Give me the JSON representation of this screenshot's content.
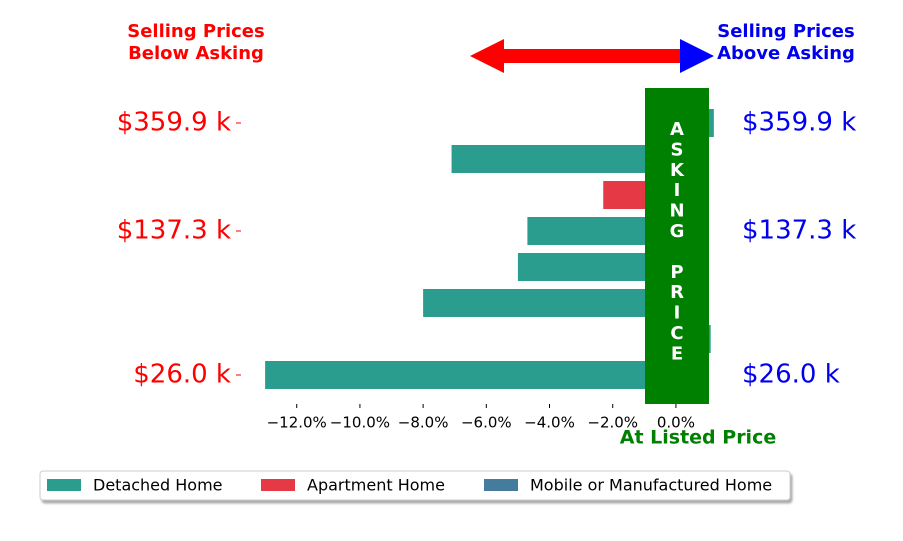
{
  "chart_data": {
    "type": "bar",
    "orientation": "horizontal",
    "categories": [
      "$359.9 k",
      null,
      null,
      "$137.3 k",
      null,
      null,
      null,
      "$26.0 k"
    ],
    "series": [
      {
        "name": "Detached Home",
        "color": "#2a9d8f",
        "values": [
          1.2,
          -7.1,
          null,
          -4.7,
          -5.0,
          -8.0,
          1.1,
          -13.0
        ]
      },
      {
        "name": "Apartment Home",
        "color": "#e63946",
        "values": [
          null,
          null,
          -2.3,
          null,
          null,
          null,
          null,
          null
        ]
      },
      {
        "name": "Mobile or Manufactured Home",
        "color": "#457b9d",
        "values": [
          null,
          null,
          null,
          null,
          null,
          null,
          null,
          null
        ]
      }
    ],
    "xlim": [
      -13.7,
      1.3
    ],
    "xticks": [
      {
        "value": -12,
        "label": "−12.0%"
      },
      {
        "value": -10,
        "label": "−10.0%"
      },
      {
        "value": -8,
        "label": "−8.0%"
      },
      {
        "value": -6,
        "label": "−6.0%"
      },
      {
        "value": -4,
        "label": "−4.0%"
      },
      {
        "value": -2,
        "label": "−2.0%"
      },
      {
        "value": 0,
        "label": "0.0%"
      }
    ],
    "annotations": {
      "below": [
        "Selling Prices",
        "Below Asking"
      ],
      "above": [
        "Selling Prices",
        "Above Asking"
      ],
      "asking": "ASKING PRICE",
      "listed": "At Listed Price"
    },
    "legend": "bottom"
  }
}
